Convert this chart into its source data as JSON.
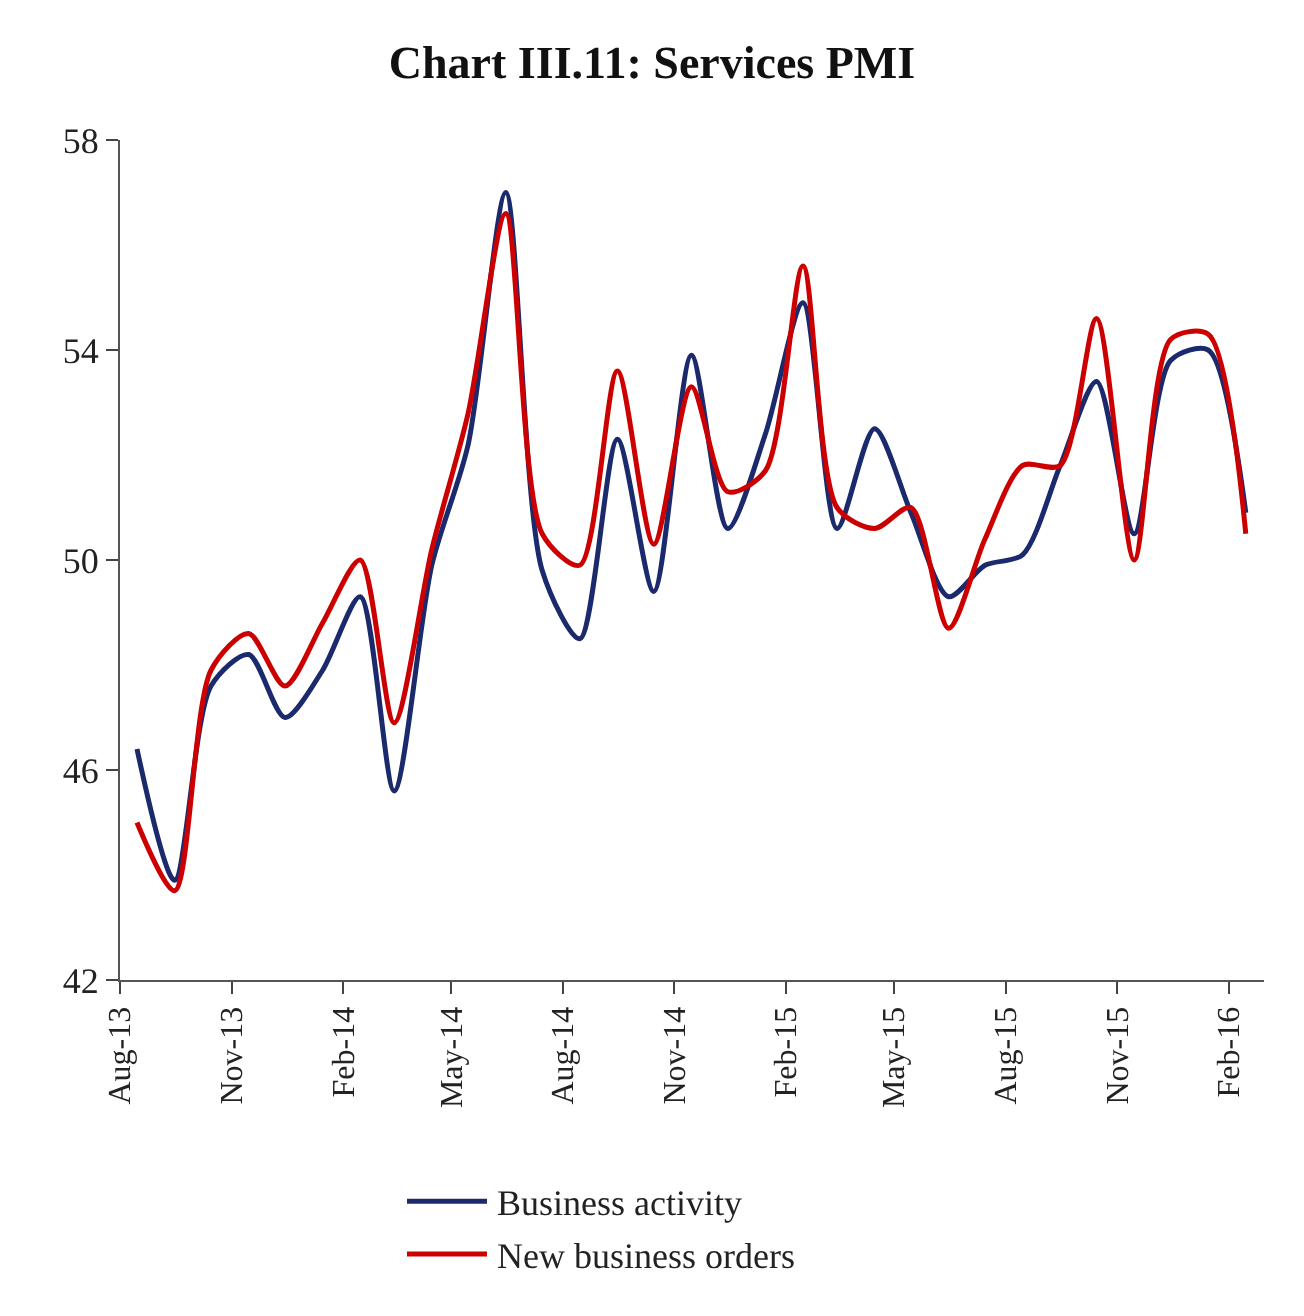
{
  "chart_data": {
    "type": "line",
    "title": "Chart III.11: Services PMI",
    "x": [
      "2013-08-15",
      "2013-09-15",
      "2013-10-15",
      "2013-11-15",
      "2013-12-15",
      "2014-01-15",
      "2014-02-15",
      "2014-03-15",
      "2014-04-15",
      "2014-05-15",
      "2014-06-15",
      "2014-07-15",
      "2014-08-15",
      "2014-09-15",
      "2014-10-15",
      "2014-11-15",
      "2014-12-15",
      "2015-01-15",
      "2015-02-15",
      "2015-03-15",
      "2015-04-15",
      "2015-05-15",
      "2015-06-15",
      "2015-07-15",
      "2015-08-15",
      "2015-09-15",
      "2015-10-15",
      "2015-11-15",
      "2015-12-15",
      "2016-01-15",
      "2016-02-15"
    ],
    "series": [
      {
        "name": "Business activity",
        "color": "#1a2a6c",
        "values": [
          46.4,
          43.9,
          47.6,
          48.2,
          47.0,
          47.9,
          49.3,
          45.6,
          49.9,
          52.2,
          57.0,
          49.8,
          48.5,
          52.3,
          49.4,
          53.9,
          50.6,
          52.4,
          54.9,
          50.6,
          52.5,
          50.9,
          49.3,
          49.9,
          50.1,
          51.8,
          53.4,
          50.5,
          53.8,
          54.0,
          50.9
        ]
      },
      {
        "name": "New business orders",
        "color": "#cc0000",
        "values": [
          45.0,
          43.7,
          47.9,
          48.6,
          47.6,
          48.8,
          50.0,
          46.9,
          50.2,
          52.8,
          56.6,
          50.5,
          49.9,
          53.6,
          50.3,
          53.3,
          51.3,
          51.7,
          55.6,
          51.0,
          50.6,
          51.0,
          48.7,
          50.4,
          51.8,
          51.8,
          54.6,
          50.0,
          54.2,
          54.3,
          50.5
        ]
      }
    ],
    "xlim": [
      "2013-08-01",
      "2016-03-01"
    ],
    "xticks": [
      {
        "value": "2013-08-01",
        "label": "Aug-13"
      },
      {
        "value": "2013-11-01",
        "label": "Nov-13"
      },
      {
        "value": "2014-02-01",
        "label": "Feb-14"
      },
      {
        "value": "2014-05-01",
        "label": "May-14"
      },
      {
        "value": "2014-08-01",
        "label": "Aug-14"
      },
      {
        "value": "2014-11-01",
        "label": "Nov-14"
      },
      {
        "value": "2015-02-01",
        "label": "Feb-15"
      },
      {
        "value": "2015-05-01",
        "label": "May-15"
      },
      {
        "value": "2015-08-01",
        "label": "Aug-15"
      },
      {
        "value": "2015-11-01",
        "label": "Nov-15"
      },
      {
        "value": "2016-02-01",
        "label": "Feb-16"
      }
    ],
    "ylim": [
      42,
      58
    ],
    "yticks": [
      42,
      46,
      50,
      54,
      58
    ],
    "legend": "bottom",
    "marker": "none",
    "line_style": "solid"
  }
}
